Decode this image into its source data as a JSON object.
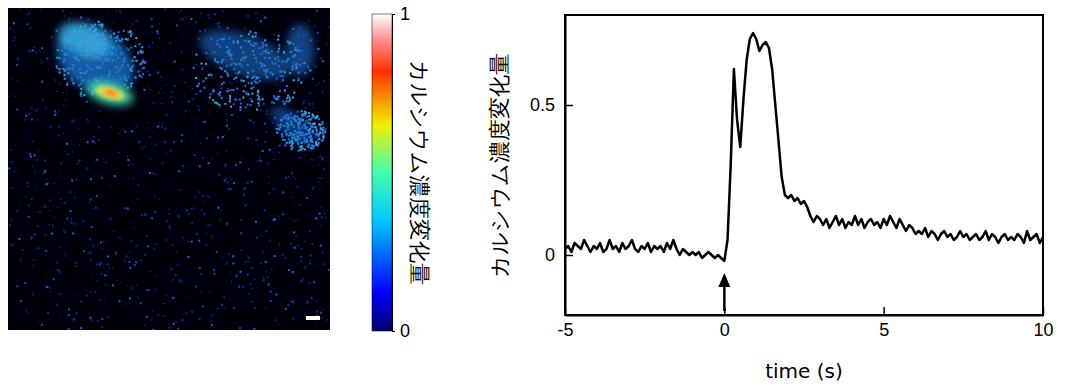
{
  "chart_data": [
    {
      "type": "image",
      "colorbar": {
        "range": [
          0,
          1
        ],
        "ticks": [
          0,
          1
        ],
        "label": "カルシウム濃度変化量"
      }
    },
    {
      "type": "line",
      "x_label": "time (s)",
      "y_label": "カルシウム濃度変化量",
      "color": "#000000",
      "xlim": [
        -5,
        10
      ],
      "xticks": [
        -5,
        0,
        5,
        10
      ],
      "ylim": [
        -0.2,
        0.8
      ],
      "yticks": [
        0,
        0.5
      ],
      "arrow": {
        "x": 0
      },
      "x": [
        -5,
        -4.9,
        -4.8,
        -4.7,
        -4.6,
        -4.5,
        -4.4,
        -4.3,
        -4.2,
        -4.1,
        -4,
        -3.9,
        -3.8,
        -3.7,
        -3.6,
        -3.5,
        -3.4,
        -3.3,
        -3.2,
        -3.1,
        -3,
        -2.9,
        -2.8,
        -2.7,
        -2.6,
        -2.5,
        -2.4,
        -2.3,
        -2.2,
        -2.1,
        -2,
        -1.9,
        -1.8,
        -1.7,
        -1.6,
        -1.5,
        -1.4,
        -1.3,
        -1.2,
        -1.1,
        -1,
        -0.9,
        -0.8,
        -0.7,
        -0.6,
        -0.5,
        -0.4,
        -0.3,
        -0.2,
        -0.1,
        0,
        0.1,
        0.2,
        0.3,
        0.4,
        0.5,
        0.6,
        0.7,
        0.8,
        0.9,
        1,
        1.1,
        1.2,
        1.3,
        1.4,
        1.5,
        1.6,
        1.7,
        1.8,
        1.9,
        2,
        2.1,
        2.2,
        2.3,
        2.4,
        2.5,
        2.6,
        2.7,
        2.8,
        2.9,
        3,
        3.1,
        3.2,
        3.3,
        3.4,
        3.5,
        3.6,
        3.7,
        3.8,
        3.9,
        4,
        4.1,
        4.2,
        4.3,
        4.4,
        4.5,
        4.6,
        4.7,
        4.8,
        4.9,
        5,
        5.1,
        5.2,
        5.3,
        5.4,
        5.5,
        5.6,
        5.7,
        5.8,
        5.9,
        6,
        6.1,
        6.2,
        6.3,
        6.4,
        6.5,
        6.6,
        6.7,
        6.8,
        6.9,
        7,
        7.1,
        7.2,
        7.3,
        7.4,
        7.5,
        7.6,
        7.7,
        7.8,
        7.9,
        8,
        8.1,
        8.2,
        8.3,
        8.4,
        8.5,
        8.6,
        8.7,
        8.8,
        8.9,
        9,
        9.1,
        9.2,
        9.3,
        9.4,
        9.5,
        9.6,
        9.7,
        9.8,
        9.9,
        10
      ],
      "values": [
        0.02,
        0.03,
        0.01,
        0.04,
        0.03,
        0.02,
        0.05,
        0.03,
        0.01,
        0.03,
        0.02,
        0.04,
        0.01,
        0.02,
        0.05,
        0.02,
        0.03,
        0.01,
        0.04,
        0.02,
        0.03,
        0.05,
        0.02,
        0.01,
        0.03,
        0.02,
        0.04,
        0.01,
        0.03,
        0.02,
        0.03,
        0.01,
        0.04,
        0.02,
        0.05,
        0.02,
        0.0,
        0.02,
        0.01,
        0.0,
        0.01,
        0.0,
        0.01,
        -0.01,
        0.0,
        0.01,
        0.0,
        -0.01,
        0.0,
        -0.01,
        -0.02,
        0.05,
        0.3,
        0.62,
        0.45,
        0.36,
        0.52,
        0.65,
        0.72,
        0.74,
        0.72,
        0.68,
        0.7,
        0.71,
        0.69,
        0.62,
        0.5,
        0.38,
        0.26,
        0.2,
        0.19,
        0.2,
        0.18,
        0.19,
        0.17,
        0.18,
        0.16,
        0.13,
        0.11,
        0.13,
        0.12,
        0.1,
        0.12,
        0.09,
        0.11,
        0.13,
        0.1,
        0.12,
        0.09,
        0.11,
        0.1,
        0.13,
        0.1,
        0.12,
        0.09,
        0.11,
        0.12,
        0.1,
        0.11,
        0.09,
        0.12,
        0.1,
        0.13,
        0.11,
        0.09,
        0.12,
        0.1,
        0.08,
        0.1,
        0.09,
        0.07,
        0.08,
        0.07,
        0.09,
        0.06,
        0.08,
        0.07,
        0.05,
        0.07,
        0.08,
        0.06,
        0.07,
        0.05,
        0.06,
        0.08,
        0.06,
        0.07,
        0.05,
        0.06,
        0.07,
        0.05,
        0.06,
        0.08,
        0.05,
        0.07,
        0.06,
        0.04,
        0.06,
        0.07,
        0.05,
        0.06,
        0.05,
        0.07,
        0.06,
        0.04,
        0.08,
        0.05,
        0.06,
        0.07,
        0.04,
        0.06
      ]
    }
  ]
}
